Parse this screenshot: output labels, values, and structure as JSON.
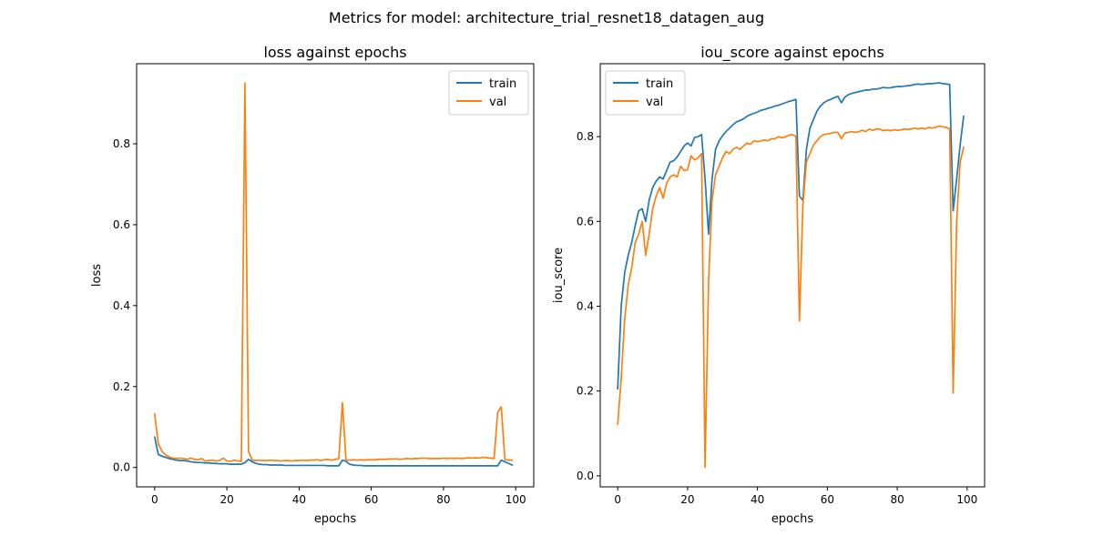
{
  "figure": {
    "title": "Metrics for model: architecture_trial_resnet18_datagen_aug"
  },
  "colors": {
    "train": "#1f77b4",
    "val": "#ff7f0e"
  },
  "chart_data": [
    {
      "type": "line",
      "title": "loss against epochs",
      "xlabel": "epochs",
      "ylabel": "loss",
      "xlim": [
        -5,
        105
      ],
      "ylim": [
        -0.048,
        0.998
      ],
      "xticks": [
        0,
        20,
        40,
        60,
        80,
        100
      ],
      "yticks": [
        0.0,
        0.2,
        0.4,
        0.6,
        0.8
      ],
      "ytick_decimals": 1,
      "legend": "upper right",
      "series": [
        {
          "name": "train",
          "x": [
            0,
            1,
            2,
            3,
            4,
            5,
            6,
            7,
            8,
            9,
            10,
            11,
            12,
            13,
            14,
            15,
            16,
            17,
            18,
            19,
            20,
            21,
            22,
            23,
            24,
            25,
            26,
            27,
            28,
            29,
            30,
            31,
            32,
            33,
            34,
            35,
            36,
            37,
            38,
            39,
            40,
            41,
            42,
            43,
            44,
            45,
            46,
            47,
            48,
            49,
            50,
            51,
            52,
            53,
            54,
            55,
            56,
            57,
            58,
            59,
            60,
            61,
            62,
            63,
            64,
            65,
            66,
            67,
            68,
            69,
            70,
            71,
            72,
            73,
            74,
            75,
            76,
            77,
            78,
            79,
            80,
            81,
            82,
            83,
            84,
            85,
            86,
            87,
            88,
            89,
            90,
            91,
            92,
            93,
            94,
            95,
            96,
            97,
            98,
            99
          ],
          "y": [
            0.075,
            0.032,
            0.028,
            0.025,
            0.022,
            0.02,
            0.018,
            0.017,
            0.017,
            0.016,
            0.014,
            0.013,
            0.012,
            0.012,
            0.011,
            0.011,
            0.01,
            0.01,
            0.009,
            0.009,
            0.009,
            0.008,
            0.008,
            0.008,
            0.008,
            0.012,
            0.02,
            0.014,
            0.01,
            0.008,
            0.007,
            0.007,
            0.006,
            0.006,
            0.006,
            0.006,
            0.005,
            0.005,
            0.005,
            0.005,
            0.005,
            0.005,
            0.005,
            0.005,
            0.005,
            0.005,
            0.005,
            0.005,
            0.004,
            0.004,
            0.004,
            0.004,
            0.018,
            0.015,
            0.008,
            0.006,
            0.005,
            0.005,
            0.004,
            0.004,
            0.004,
            0.004,
            0.004,
            0.004,
            0.004,
            0.004,
            0.004,
            0.004,
            0.004,
            0.004,
            0.004,
            0.004,
            0.004,
            0.004,
            0.004,
            0.004,
            0.004,
            0.004,
            0.004,
            0.004,
            0.004,
            0.004,
            0.004,
            0.004,
            0.004,
            0.004,
            0.004,
            0.004,
            0.004,
            0.004,
            0.004,
            0.004,
            0.004,
            0.004,
            0.004,
            0.004,
            0.018,
            0.014,
            0.01,
            0.006
          ]
        },
        {
          "name": "val",
          "x": [
            0,
            1,
            2,
            3,
            4,
            5,
            6,
            7,
            8,
            9,
            10,
            11,
            12,
            13,
            14,
            15,
            16,
            17,
            18,
            19,
            20,
            21,
            22,
            23,
            24,
            25,
            26,
            27,
            28,
            29,
            30,
            31,
            32,
            33,
            34,
            35,
            36,
            37,
            38,
            39,
            40,
            41,
            42,
            43,
            44,
            45,
            46,
            47,
            48,
            49,
            50,
            51,
            52,
            53,
            54,
            55,
            56,
            57,
            58,
            59,
            60,
            61,
            62,
            63,
            64,
            65,
            66,
            67,
            68,
            69,
            70,
            71,
            72,
            73,
            74,
            75,
            76,
            77,
            78,
            79,
            80,
            81,
            82,
            83,
            84,
            85,
            86,
            87,
            88,
            89,
            90,
            91,
            92,
            93,
            94,
            95,
            96,
            97,
            98,
            99
          ],
          "y": [
            0.132,
            0.058,
            0.04,
            0.031,
            0.026,
            0.023,
            0.022,
            0.023,
            0.022,
            0.02,
            0.023,
            0.02,
            0.019,
            0.022,
            0.016,
            0.017,
            0.018,
            0.016,
            0.017,
            0.023,
            0.016,
            0.015,
            0.018,
            0.016,
            0.015,
            0.95,
            0.04,
            0.018,
            0.017,
            0.018,
            0.017,
            0.017,
            0.018,
            0.017,
            0.017,
            0.016,
            0.017,
            0.017,
            0.016,
            0.017,
            0.017,
            0.018,
            0.017,
            0.018,
            0.018,
            0.019,
            0.017,
            0.019,
            0.02,
            0.018,
            0.02,
            0.022,
            0.16,
            0.018,
            0.018,
            0.019,
            0.018,
            0.019,
            0.018,
            0.019,
            0.019,
            0.019,
            0.02,
            0.02,
            0.02,
            0.021,
            0.021,
            0.021,
            0.02,
            0.021,
            0.022,
            0.021,
            0.022,
            0.022,
            0.023,
            0.023,
            0.022,
            0.022,
            0.022,
            0.022,
            0.023,
            0.022,
            0.023,
            0.022,
            0.023,
            0.022,
            0.023,
            0.024,
            0.023,
            0.024,
            0.023,
            0.025,
            0.024,
            0.023,
            0.022,
            0.135,
            0.15,
            0.02,
            0.018,
            0.018
          ]
        }
      ]
    },
    {
      "type": "line",
      "title": "iou_score against epochs",
      "xlabel": "epochs",
      "ylabel": "iou_score",
      "xlim": [
        -5,
        105
      ],
      "ylim": [
        -0.026,
        0.972
      ],
      "xticks": [
        0,
        20,
        40,
        60,
        80,
        100
      ],
      "yticks": [
        0.0,
        0.2,
        0.4,
        0.6,
        0.8
      ],
      "ytick_decimals": 1,
      "legend": "upper left",
      "series": [
        {
          "name": "train",
          "x": [
            0,
            1,
            2,
            3,
            4,
            5,
            6,
            7,
            8,
            9,
            10,
            11,
            12,
            13,
            14,
            15,
            16,
            17,
            18,
            19,
            20,
            21,
            22,
            23,
            24,
            25,
            26,
            27,
            28,
            29,
            30,
            31,
            32,
            33,
            34,
            35,
            36,
            37,
            38,
            39,
            40,
            41,
            42,
            43,
            44,
            45,
            46,
            47,
            48,
            49,
            50,
            51,
            52,
            53,
            54,
            55,
            56,
            57,
            58,
            59,
            60,
            61,
            62,
            63,
            64,
            65,
            66,
            67,
            68,
            69,
            70,
            71,
            72,
            73,
            74,
            75,
            76,
            77,
            78,
            79,
            80,
            81,
            82,
            83,
            84,
            85,
            86,
            87,
            88,
            89,
            90,
            91,
            92,
            93,
            94,
            95,
            96,
            97,
            98,
            99
          ],
          "y": [
            0.205,
            0.4,
            0.48,
            0.52,
            0.55,
            0.59,
            0.625,
            0.63,
            0.6,
            0.65,
            0.68,
            0.695,
            0.705,
            0.7,
            0.72,
            0.74,
            0.743,
            0.752,
            0.765,
            0.778,
            0.785,
            0.778,
            0.798,
            0.8,
            0.805,
            0.7,
            0.57,
            0.7,
            0.77,
            0.79,
            0.802,
            0.812,
            0.82,
            0.828,
            0.835,
            0.838,
            0.842,
            0.848,
            0.852,
            0.855,
            0.858,
            0.862,
            0.864,
            0.867,
            0.869,
            0.872,
            0.874,
            0.877,
            0.88,
            0.883,
            0.885,
            0.888,
            0.66,
            0.65,
            0.77,
            0.82,
            0.84,
            0.86,
            0.872,
            0.88,
            0.885,
            0.888,
            0.892,
            0.895,
            0.88,
            0.893,
            0.899,
            0.902,
            0.904,
            0.906,
            0.908,
            0.91,
            0.91,
            0.912,
            0.912,
            0.914,
            0.916,
            0.915,
            0.915,
            0.917,
            0.918,
            0.918,
            0.919,
            0.92,
            0.921,
            0.923,
            0.924,
            0.923,
            0.924,
            0.925,
            0.925,
            0.926,
            0.927,
            0.925,
            0.924,
            0.923,
            0.625,
            0.7,
            0.78,
            0.848
          ]
        },
        {
          "name": "val",
          "x": [
            0,
            1,
            2,
            3,
            4,
            5,
            6,
            7,
            8,
            9,
            10,
            11,
            12,
            13,
            14,
            15,
            16,
            17,
            18,
            19,
            20,
            21,
            22,
            23,
            24,
            25,
            26,
            27,
            28,
            29,
            30,
            31,
            32,
            33,
            34,
            35,
            36,
            37,
            38,
            39,
            40,
            41,
            42,
            43,
            44,
            45,
            46,
            47,
            48,
            49,
            50,
            51,
            52,
            53,
            54,
            55,
            56,
            57,
            58,
            59,
            60,
            61,
            62,
            63,
            64,
            65,
            66,
            67,
            68,
            69,
            70,
            71,
            72,
            73,
            74,
            75,
            76,
            77,
            78,
            79,
            80,
            81,
            82,
            83,
            84,
            85,
            86,
            87,
            88,
            89,
            90,
            91,
            92,
            93,
            94,
            95,
            96,
            97,
            98,
            99
          ],
          "y": [
            0.122,
            0.23,
            0.37,
            0.45,
            0.49,
            0.55,
            0.57,
            0.6,
            0.52,
            0.57,
            0.63,
            0.66,
            0.68,
            0.655,
            0.69,
            0.705,
            0.71,
            0.705,
            0.73,
            0.72,
            0.722,
            0.755,
            0.745,
            0.75,
            0.76,
            0.02,
            0.46,
            0.65,
            0.71,
            0.73,
            0.75,
            0.765,
            0.76,
            0.77,
            0.775,
            0.77,
            0.778,
            0.785,
            0.782,
            0.79,
            0.788,
            0.79,
            0.792,
            0.79,
            0.795,
            0.795,
            0.8,
            0.797,
            0.8,
            0.803,
            0.805,
            0.8,
            0.365,
            0.64,
            0.74,
            0.76,
            0.78,
            0.79,
            0.8,
            0.805,
            0.806,
            0.808,
            0.81,
            0.81,
            0.795,
            0.808,
            0.81,
            0.812,
            0.81,
            0.812,
            0.815,
            0.812,
            0.818,
            0.815,
            0.818,
            0.818,
            0.814,
            0.816,
            0.814,
            0.816,
            0.815,
            0.816,
            0.818,
            0.817,
            0.818,
            0.82,
            0.818,
            0.82,
            0.818,
            0.822,
            0.82,
            0.822,
            0.825,
            0.823,
            0.822,
            0.818,
            0.195,
            0.6,
            0.74,
            0.775
          ]
        }
      ]
    }
  ]
}
